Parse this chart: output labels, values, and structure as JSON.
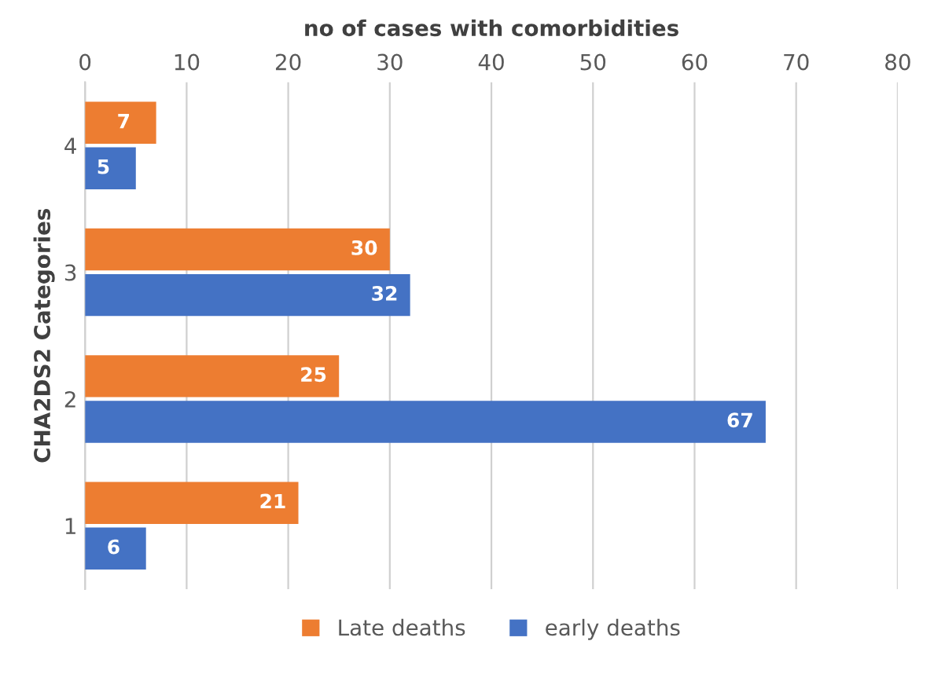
{
  "chart_data": {
    "type": "bar",
    "orientation": "horizontal",
    "xlabel": "no of cases with comorbidities",
    "ylabel": "CHA2DS2 Categories",
    "categories": [
      "4",
      "3",
      "2",
      "1"
    ],
    "series": [
      {
        "name": "Late deaths",
        "color": "#ed7d31",
        "values": [
          7,
          30,
          25,
          21
        ]
      },
      {
        "name": "early deaths",
        "color": "#4472c4",
        "values": [
          5,
          32,
          67,
          6
        ]
      }
    ],
    "xlim": [
      0,
      80
    ],
    "xticks": [
      0,
      10,
      20,
      30,
      40,
      50,
      60,
      70,
      80
    ],
    "grid": "x",
    "legend": "bottom",
    "data_labels": true
  }
}
